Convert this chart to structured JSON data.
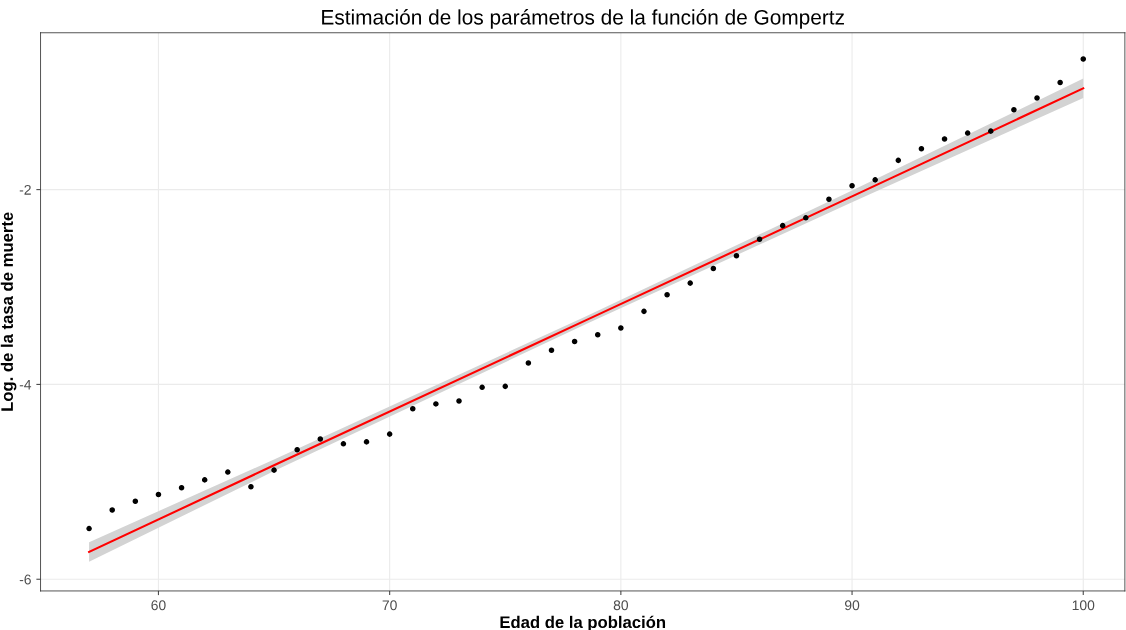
{
  "chart_data": {
    "type": "scatter",
    "title": "Estimación de los parámetros de la función de Gompertz",
    "xlabel": "Edad de la población",
    "ylabel": "Log. de la tasa de muerte",
    "x": [
      57,
      58,
      59,
      60,
      61,
      62,
      63,
      64,
      65,
      66,
      67,
      68,
      69,
      70,
      71,
      72,
      73,
      74,
      75,
      76,
      77,
      78,
      79,
      80,
      81,
      82,
      83,
      84,
      85,
      86,
      87,
      88,
      89,
      90,
      91,
      92,
      93,
      94,
      95,
      96,
      97,
      98,
      99,
      100
    ],
    "series": [
      {
        "color": "#000000",
        "marker": "circle",
        "values": [
          -5.48,
          -5.29,
          -5.2,
          -5.13,
          -5.06,
          -4.98,
          -4.9,
          -5.05,
          -4.88,
          -4.67,
          -4.56,
          -4.61,
          -4.59,
          -4.51,
          -4.25,
          -4.2,
          -4.17,
          -4.03,
          -4.02,
          -3.78,
          -3.65,
          -3.56,
          -3.49,
          -3.42,
          -3.25,
          -3.08,
          -2.96,
          -2.81,
          -2.68,
          -2.51,
          -2.37,
          -2.29,
          -2.1,
          -1.96,
          -1.9,
          -1.7,
          -1.58,
          -1.48,
          -1.42,
          -1.4,
          -1.18,
          -1.06,
          -0.9,
          -0.66
        ]
      },
      {
        "type": "line",
        "color": "#ff0000",
        "x": [
          57,
          65,
          78.5,
          90,
          100
        ],
        "values": [
          -5.72,
          -4.83,
          -3.34,
          -2.07,
          -0.96
        ],
        "lower": [
          -5.82,
          -4.89,
          -3.38,
          -2.13,
          -1.06
        ],
        "upper": [
          -5.62,
          -4.77,
          -3.3,
          -2.01,
          -0.86
        ]
      }
    ],
    "xlim": [
      54.9,
      101.8
    ],
    "ylim": [
      -6.12,
      -0.39
    ],
    "xticks": [
      60,
      70,
      80,
      90,
      100
    ],
    "yticks": [
      -2,
      -4,
      -6
    ],
    "grid": true
  }
}
